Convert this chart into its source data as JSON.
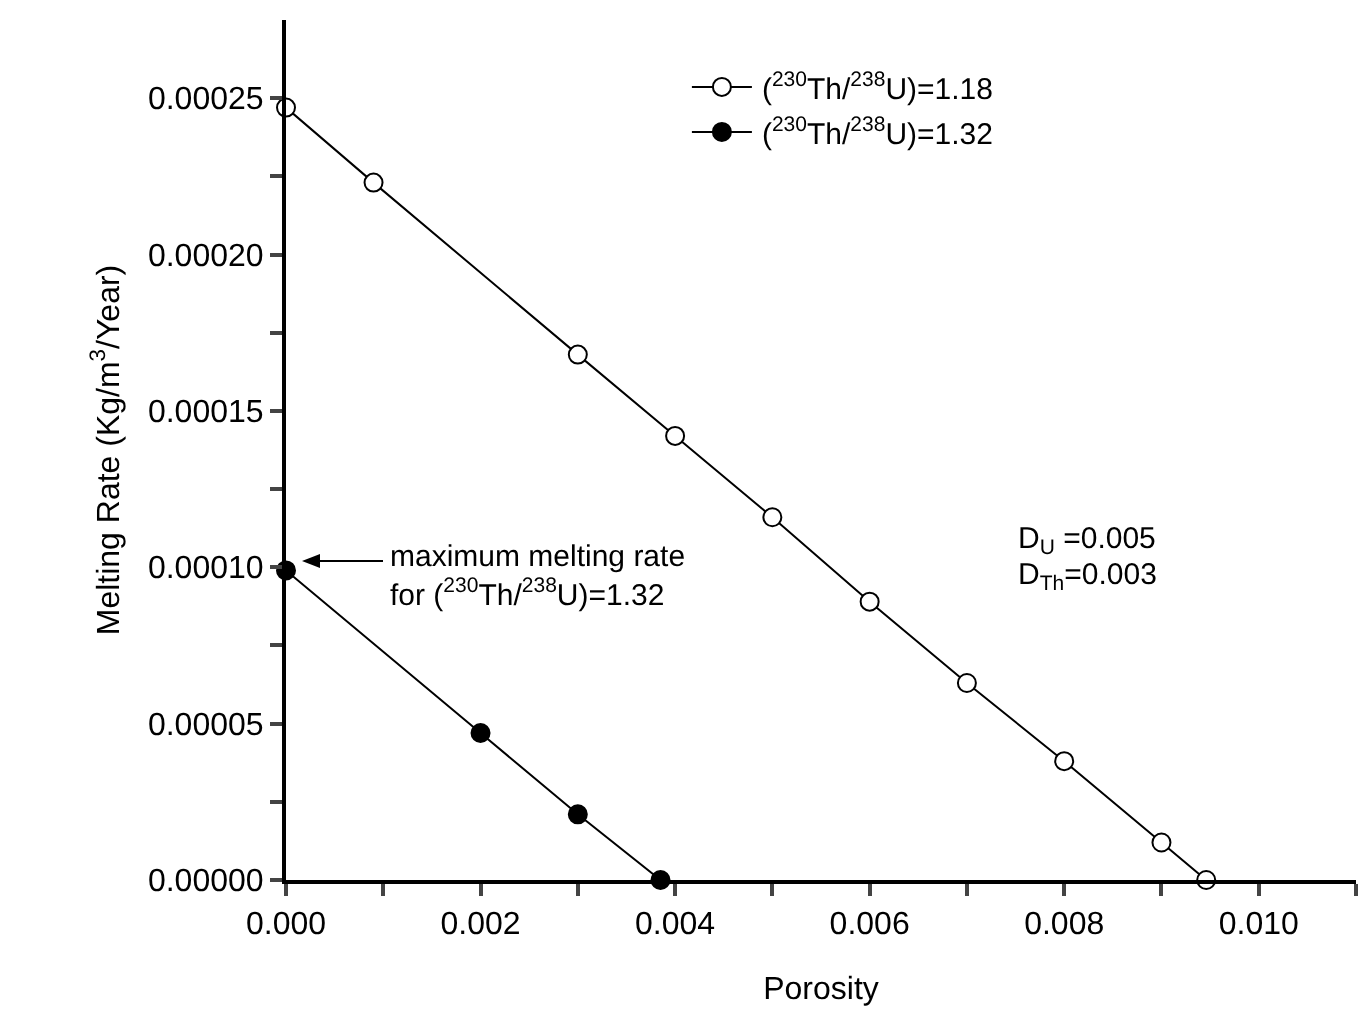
{
  "chart_data": {
    "type": "line",
    "xlabel": "Porosity",
    "ylabel": "Melting Rate (Kg/m$^{3}$/Year)",
    "series": [
      {
        "name": "($^{230}$Th/$^{238}$U)=1.18",
        "color": "#000000",
        "marker": "circle-open",
        "x": [
          0,
          0.0009,
          0.003,
          0.004,
          0.005,
          0.006,
          0.007,
          0.008,
          0.009,
          0.00946
        ],
        "values": [
          0.000247,
          0.000223,
          0.000168,
          0.000142,
          0.000116,
          8.9e-05,
          6.3e-05,
          3.8e-05,
          1.2e-05,
          0
        ]
      },
      {
        "name": "($^{230}$Th/$^{238}$U)=1.32",
        "color": "#000000",
        "marker": "circle",
        "x": [
          0,
          0.002,
          0.003,
          0.00385
        ],
        "values": [
          9.9e-05,
          4.7e-05,
          2.1e-05,
          0
        ]
      }
    ],
    "xlim": [
      0,
      0.011
    ],
    "xticks": [
      {
        "value": 0,
        "label": "0.000"
      },
      {
        "value": 0.001,
        "label": null
      },
      {
        "value": 0.002,
        "label": "0.002"
      },
      {
        "value": 0.003,
        "label": null
      },
      {
        "value": 0.004,
        "label": "0.004"
      },
      {
        "value": 0.005,
        "label": null
      },
      {
        "value": 0.006,
        "label": "0.006"
      },
      {
        "value": 0.007,
        "label": null
      },
      {
        "value": 0.008,
        "label": "0.008"
      },
      {
        "value": 0.009,
        "label": null
      },
      {
        "value": 0.01,
        "label": "0.010"
      },
      {
        "value": 0.011,
        "label": null
      }
    ],
    "ylim": [
      0,
      0.000275
    ],
    "yticks": [
      {
        "value": 0,
        "label": "0.00000"
      },
      {
        "value": 2.5e-05,
        "label": null
      },
      {
        "value": 5e-05,
        "label": "0.00005"
      },
      {
        "value": 7.5e-05,
        "label": null
      },
      {
        "value": 0.0001,
        "label": "0.00010"
      },
      {
        "value": 0.000125,
        "label": null
      },
      {
        "value": 0.00015,
        "label": "0.00015"
      },
      {
        "value": 0.000175,
        "label": null
      },
      {
        "value": 0.0002,
        "label": "0.00020"
      },
      {
        "value": 0.000225,
        "label": null
      },
      {
        "value": 0.00025,
        "label": "0.00025"
      }
    ],
    "annotations": [
      "maximum melting rate\nfor ($^{230}$Th/$^{238}$U)=1.32",
      "D$_{U}$ =0.005",
      "D$_{Th}$=0.003"
    ],
    "grid": false,
    "legend": "top right",
    "line_style": "solid"
  }
}
